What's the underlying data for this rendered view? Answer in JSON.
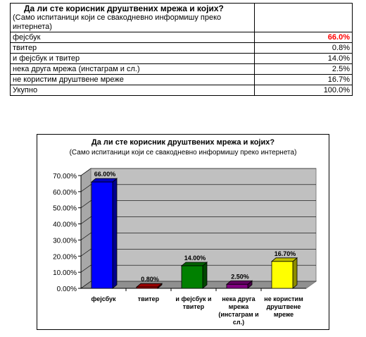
{
  "table": {
    "title": "Да ли сте корисник друштвених мрежа и којих?",
    "subtitle": "(Само испитаници  који се свакодневно информишу преко интернета)",
    "rows": [
      {
        "label": "фејсбук",
        "value": "66.0%"
      },
      {
        "label": "твитер",
        "value": "0.8%"
      },
      {
        "label": "и фејсбук и твитер",
        "value": "14.0%"
      },
      {
        "label": "нека друга мрежа (инстаграм и сл.)",
        "value": "2.5%"
      },
      {
        "label": "не користим друштвене мреже",
        "value": "16.7%"
      },
      {
        "label": "Укупно",
        "value": "100.0%"
      }
    ]
  },
  "chart_data": {
    "type": "bar",
    "title": "Да ли сте корисник друштвених мрежа и којих?",
    "subtitle": "(Само испитаници који се свакодневно информишу преко интернета)",
    "categories": [
      [
        "фејсбук"
      ],
      [
        "твитер"
      ],
      [
        "и фејсбук и",
        "твитер"
      ],
      [
        "нека друга",
        "мрежа",
        "(инстаграм и",
        "сл.)"
      ],
      [
        "не користим",
        "друштвене",
        "мреже"
      ]
    ],
    "values": [
      66.0,
      0.8,
      14.0,
      2.5,
      16.7
    ],
    "data_labels": [
      "66.00%",
      "0.80%",
      "14.00%",
      "2.50%",
      "16.70%"
    ],
    "bar_colors": [
      "#0000ff",
      "#cc0000",
      "#008000",
      "#800080",
      "#ffff00"
    ],
    "yticks": [
      "0.00%",
      "10.00%",
      "20.00%",
      "30.00%",
      "40.00%",
      "50.00%",
      "60.00%",
      "70.00%"
    ],
    "ylim": [
      0,
      70
    ],
    "grid": true,
    "xlabel": "",
    "ylabel": ""
  }
}
